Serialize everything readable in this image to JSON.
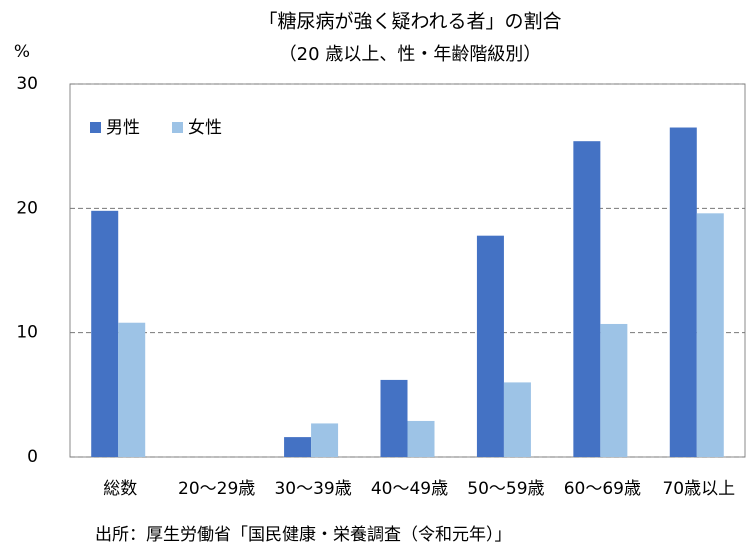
{
  "chart_data": {
    "type": "bar",
    "title": "「糖尿病が強く疑われる者」の割合",
    "subtitle": "（20 歳以上、性・年齢階級別）",
    "y_label": "%",
    "source": "出所：厚生労働省「国民健康・栄養調査（令和元年）」",
    "categories": [
      "総数",
      "20〜29歳",
      "30〜39歳",
      "40〜49歳",
      "50〜59歳",
      "60〜69歳",
      "70歳以上"
    ],
    "series": [
      {
        "name": "男性",
        "color": "#4472c4",
        "values": [
          19.8,
          0,
          1.6,
          6.2,
          17.8,
          25.4,
          26.5
        ]
      },
      {
        "name": "女性",
        "color": "#9dc3e6",
        "values": [
          10.8,
          0,
          2.7,
          2.9,
          6.0,
          10.7,
          19.6
        ]
      }
    ],
    "ylim": [
      0,
      30
    ],
    "yticks": [
      0,
      10,
      20,
      30
    ],
    "grid": true,
    "legend": "top-left"
  }
}
